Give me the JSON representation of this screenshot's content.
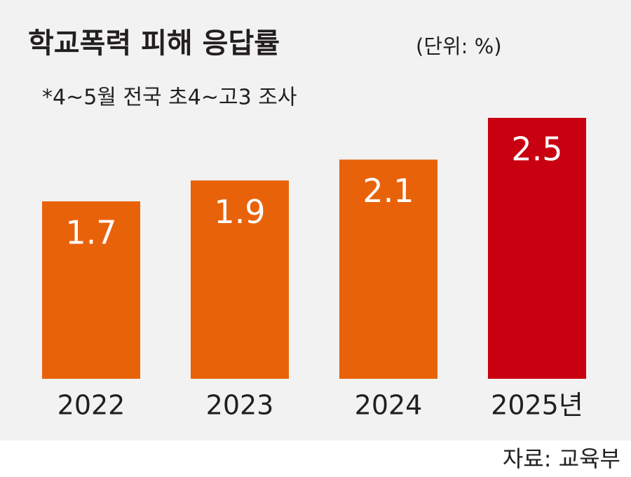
{
  "chart_data": {
    "type": "bar",
    "title": "학교폭력 피해 응답률",
    "unit": "(단위: %)",
    "note": "*4~5월 전국 초4~고3 조사",
    "source": "자료: 교육부",
    "categories": [
      "2022",
      "2023",
      "2024",
      "2025년"
    ],
    "values": [
      1.7,
      1.9,
      2.1,
      2.5
    ],
    "colors": [
      "#e8620a",
      "#e8620a",
      "#e8620a",
      "#c8000f"
    ],
    "ylim": [
      0,
      2.5
    ],
    "grid": false
  }
}
